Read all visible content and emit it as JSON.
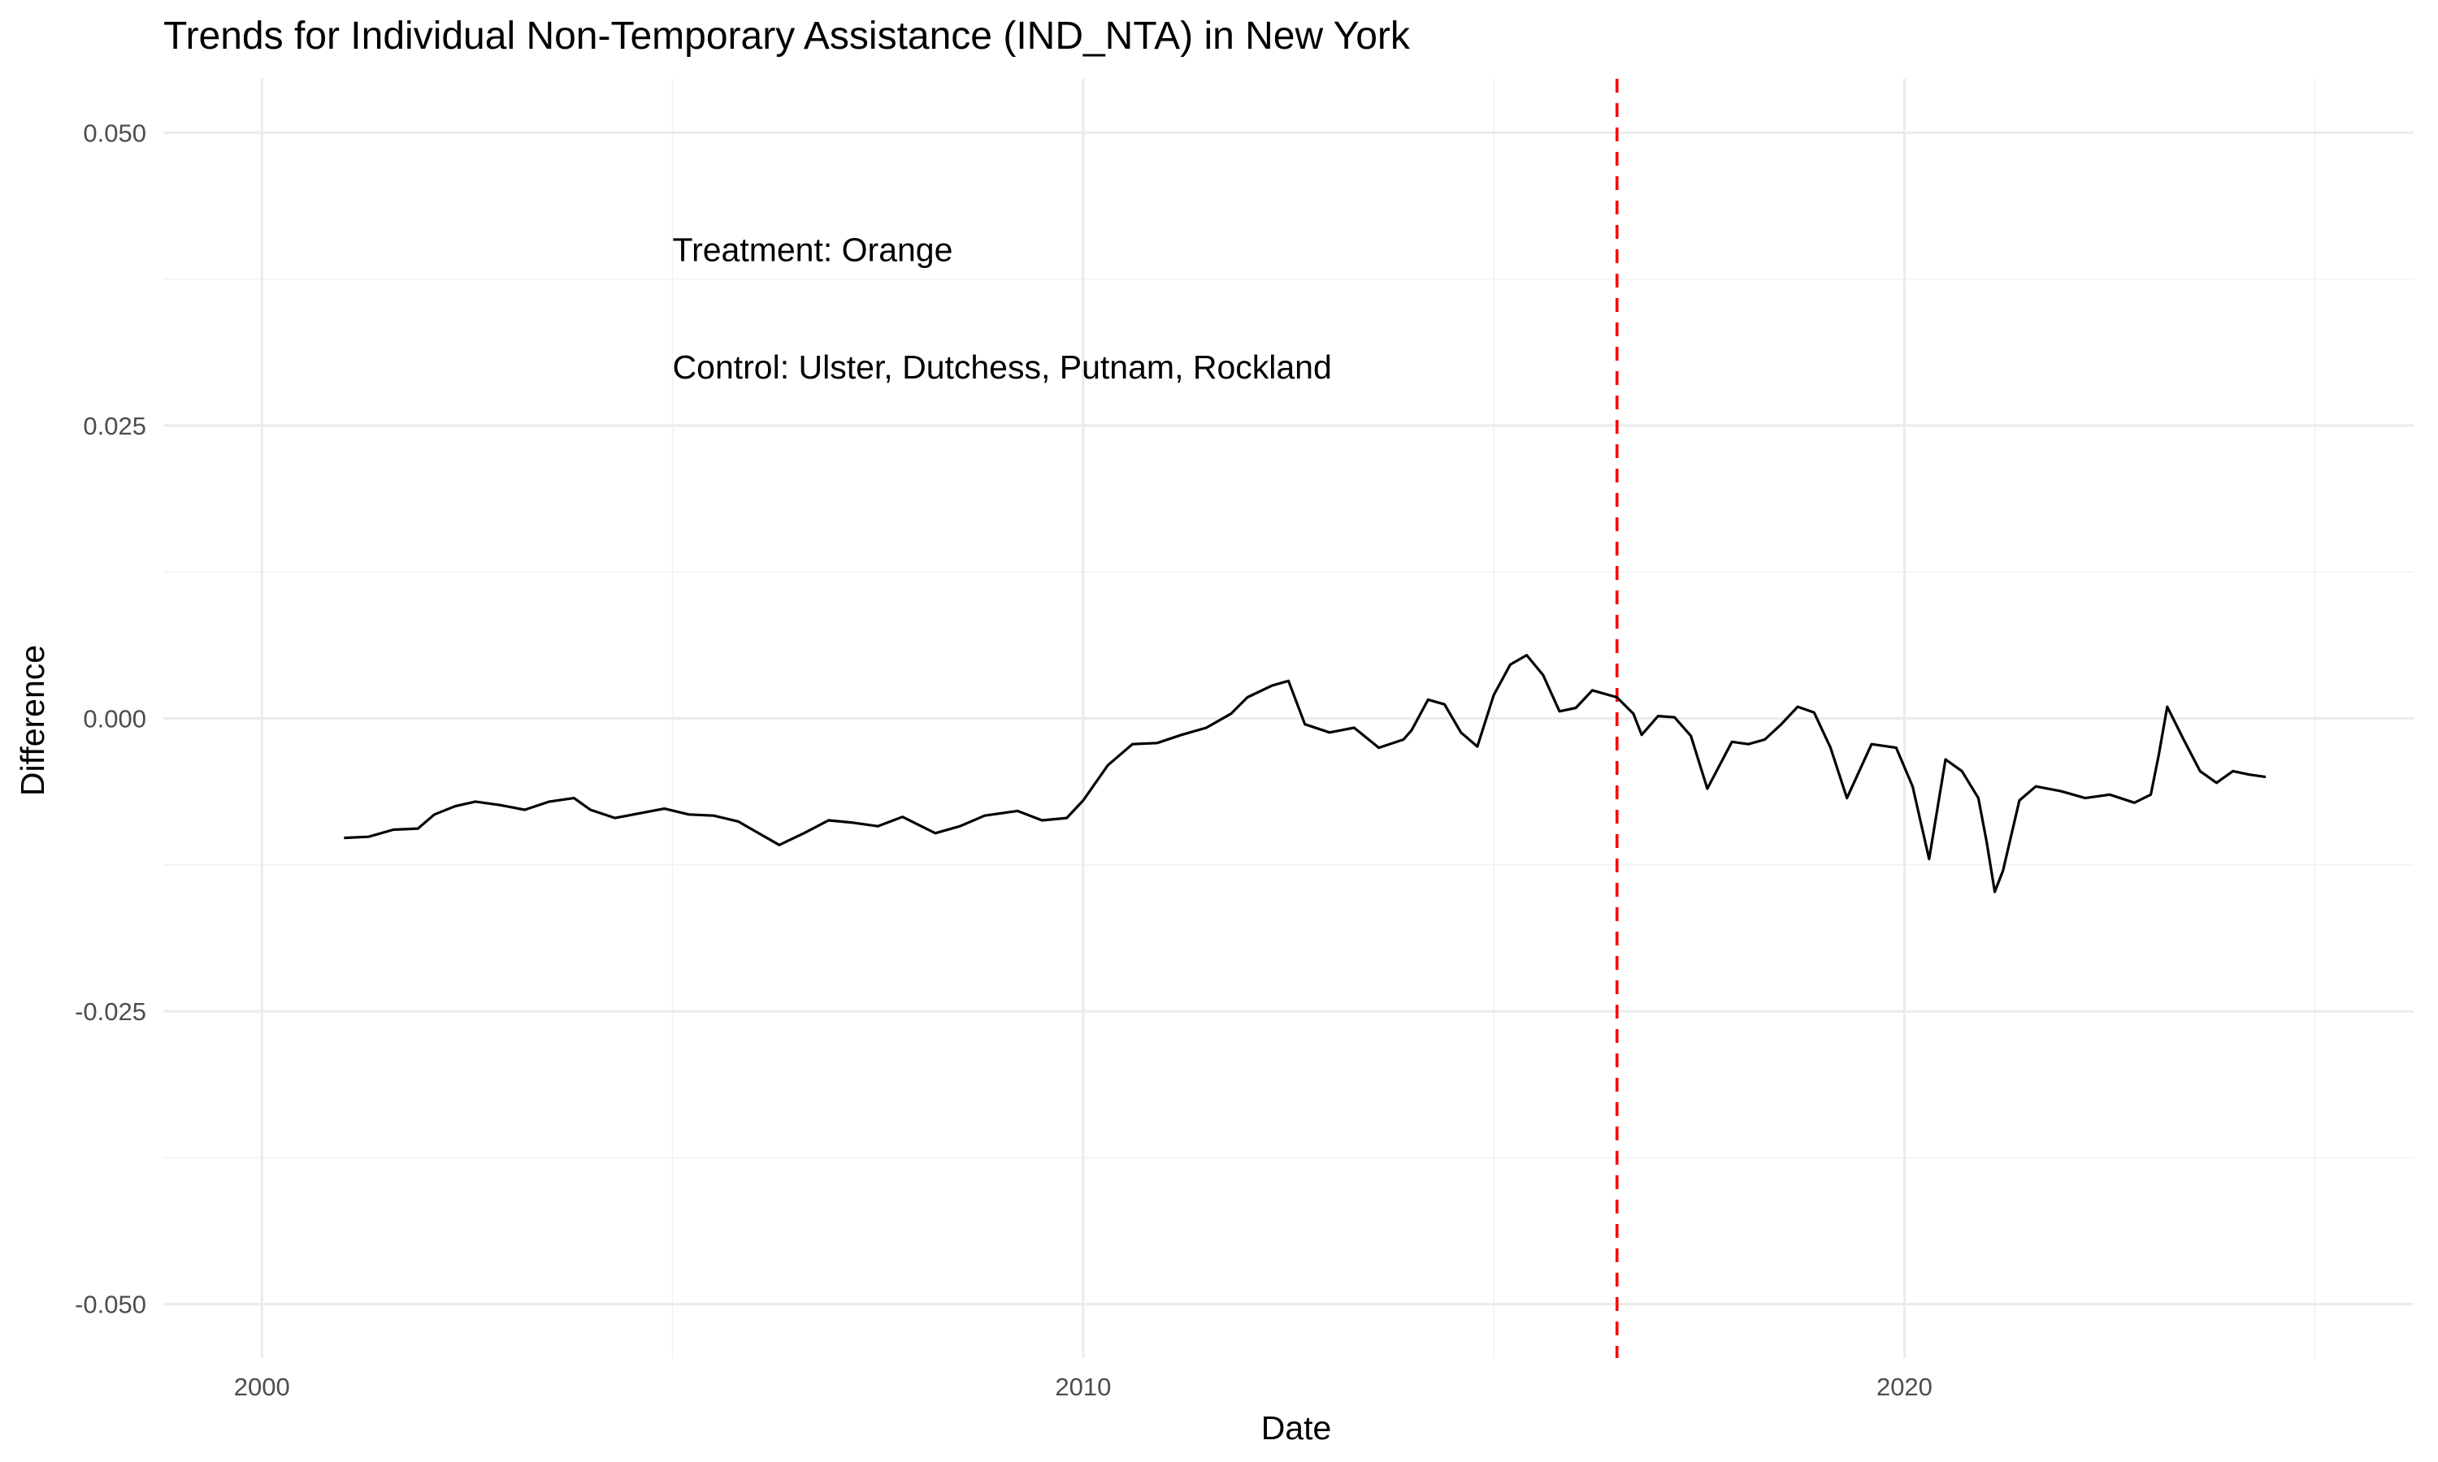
{
  "chart_data": {
    "type": "line",
    "title": "Trends for Individual Non-Temporary Assistance (IND_NTA) in New York",
    "xlabel": "Date",
    "ylabel": "Difference",
    "xlim": [
      2000,
      2025
    ],
    "ylim": [
      -0.05,
      0.05
    ],
    "x_ticks": [
      2000,
      2010,
      2020
    ],
    "x_tick_labels": [
      "2000",
      "2010",
      "2020"
    ],
    "y_ticks": [
      -0.05,
      -0.025,
      0,
      0.025,
      0.05
    ],
    "y_tick_labels": [
      "-0.050",
      "-0.025",
      "0.000",
      "0.025",
      "0.050"
    ],
    "grid": true,
    "legend": "none",
    "vline": {
      "x": 2016.5,
      "color": "#ff0000",
      "style": "dashed"
    },
    "annotations": [
      {
        "text": "Treatment: Orange",
        "x": 2005.0,
        "y": 0.04
      },
      {
        "text": "Control: Ulster, Dutchess, Putnam, Rockland",
        "x": 2005.0,
        "y": 0.03
      }
    ],
    "series": [
      {
        "color": "#000000",
        "x": [
          2001.0,
          2001.3,
          2001.6,
          2001.9,
          2002.1,
          2002.35,
          2002.6,
          2002.9,
          2003.2,
          2003.5,
          2003.8,
          2004.0,
          2004.3,
          2004.6,
          2004.9,
          2005.2,
          2005.5,
          2005.8,
          2006.0,
          2006.3,
          2006.6,
          2006.9,
          2007.2,
          2007.5,
          2007.8,
          2008.2,
          2008.5,
          2008.8,
          2009.2,
          2009.5,
          2009.8,
          2010.0,
          2010.3,
          2010.6,
          2010.9,
          2011.2,
          2011.5,
          2011.8,
          2012.0,
          2012.3,
          2012.5,
          2012.7,
          2013.0,
          2013.3,
          2013.6,
          2013.9,
          2014.0,
          2014.2,
          2014.4,
          2014.6,
          2014.8,
          2015.0,
          2015.2,
          2015.4,
          2015.6,
          2015.8,
          2016.0,
          2016.2,
          2016.5,
          2016.7,
          2016.8,
          2017.0,
          2017.2,
          2017.4,
          2017.6,
          2017.9,
          2018.1,
          2018.3,
          2018.5,
          2018.7,
          2018.9,
          2019.1,
          2019.3,
          2019.6,
          2019.9,
          2020.1,
          2020.3,
          2020.5,
          2020.7,
          2020.9,
          2021.0,
          2021.1,
          2021.2,
          2021.4,
          2021.6,
          2021.9,
          2022.2,
          2022.5,
          2022.8,
          2023.0,
          2023.1,
          2023.2,
          2023.4,
          2023.6,
          2023.8,
          2023.9,
          2024.0,
          2024.2,
          2024.4
        ],
        "y": [
          -0.0102,
          -0.0101,
          -0.0095,
          -0.0094,
          -0.0082,
          -0.0075,
          -0.0071,
          -0.0074,
          -0.0078,
          -0.0071,
          -0.0068,
          -0.0078,
          -0.0085,
          -0.0081,
          -0.0077,
          -0.0082,
          -0.0083,
          -0.0088,
          -0.0096,
          -0.0108,
          -0.0098,
          -0.0087,
          -0.0089,
          -0.0092,
          -0.0084,
          -0.0098,
          -0.0092,
          -0.0083,
          -0.0079,
          -0.0087,
          -0.0085,
          -0.007,
          -0.004,
          -0.0022,
          -0.0021,
          -0.0014,
          -0.0008,
          0.0004,
          0.0018,
          0.0028,
          0.0032,
          -0.0005,
          -0.0012,
          -0.0008,
          -0.0025,
          -0.0018,
          -0.001,
          0.0016,
          0.0012,
          -0.0012,
          -0.0024,
          0.002,
          0.0046,
          0.0054,
          0.0037,
          0.0006,
          0.0009,
          0.0024,
          0.0018,
          0.0004,
          -0.0014,
          0.0002,
          0.0001,
          -0.0015,
          -0.006,
          -0.002,
          -0.0022,
          -0.0018,
          -0.0005,
          0.001,
          0.0005,
          -0.0025,
          -0.0068,
          -0.0022,
          -0.0025,
          -0.0058,
          -0.012,
          -0.0035,
          -0.0045,
          -0.0068,
          -0.0105,
          -0.0148,
          -0.013,
          -0.007,
          -0.0058,
          -0.0062,
          -0.0068,
          -0.0065,
          -0.0072,
          -0.0065,
          -0.003,
          0.001,
          -0.0018,
          -0.0045,
          -0.0055,
          -0.005,
          -0.0045,
          -0.0048,
          -0.005
        ]
      }
    ]
  }
}
